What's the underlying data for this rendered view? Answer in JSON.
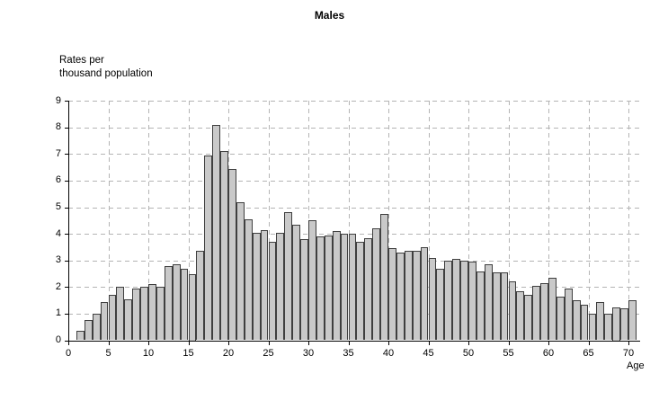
{
  "title": "Males",
  "y_axis_caption": "Rates per\nthousand population",
  "x_axis_label": "Age",
  "colors": {
    "bar_fill": "#c9c9c9",
    "bar_border": "#3f3f3f",
    "gridline": "#b4b4b4",
    "axis": "#000000",
    "text": "#000000",
    "background": "#ffffff"
  },
  "chart_data": {
    "type": "bar",
    "title": "Males",
    "ylabel": "Rates per thousand population",
    "xlabel": "Age",
    "ylim": [
      0,
      9
    ],
    "xlim": [
      0,
      71
    ],
    "y_ticks": [
      0,
      1,
      2,
      3,
      4,
      5,
      6,
      7,
      8,
      9
    ],
    "x_ticks": [
      0,
      5,
      10,
      15,
      20,
      25,
      30,
      35,
      40,
      45,
      50,
      55,
      60,
      65,
      70
    ],
    "grid": "dashed horizontal and vertical gridlines",
    "legend": "none",
    "bar_unit": "one bar per single year of age",
    "ages": [
      1,
      2,
      3,
      4,
      5,
      6,
      7,
      8,
      9,
      10,
      11,
      12,
      13,
      14,
      15,
      16,
      17,
      18,
      19,
      20,
      21,
      22,
      23,
      24,
      25,
      26,
      27,
      28,
      29,
      30,
      31,
      32,
      33,
      34,
      35,
      36,
      37,
      38,
      39,
      40,
      41,
      42,
      43,
      44,
      45,
      46,
      47,
      48,
      49,
      50,
      51,
      52,
      53,
      54,
      55,
      56,
      57,
      58,
      59,
      60,
      61,
      62,
      63,
      64,
      65,
      66,
      67,
      68,
      69,
      70
    ],
    "values": [
      0.35,
      0.75,
      1.0,
      1.45,
      1.7,
      2.0,
      1.55,
      1.95,
      2.0,
      2.1,
      2.0,
      2.8,
      2.85,
      2.7,
      2.5,
      3.35,
      6.95,
      8.1,
      7.1,
      6.45,
      5.2,
      4.55,
      4.05,
      4.15,
      3.7,
      4.05,
      4.8,
      4.35,
      3.8,
      4.5,
      3.9,
      3.95,
      4.1,
      4.0,
      4.0,
      3.7,
      3.85,
      4.2,
      4.75,
      3.45,
      3.3,
      3.35,
      3.35,
      3.5,
      3.1,
      2.7,
      3.0,
      3.05,
      3.0,
      2.95,
      2.6,
      2.85,
      2.55,
      2.55,
      2.2,
      1.85,
      1.7,
      2.05,
      2.15,
      2.35,
      1.65,
      1.95,
      1.5,
      1.35,
      1.0,
      1.45,
      1.0,
      1.25,
      1.2,
      1.5
    ]
  }
}
